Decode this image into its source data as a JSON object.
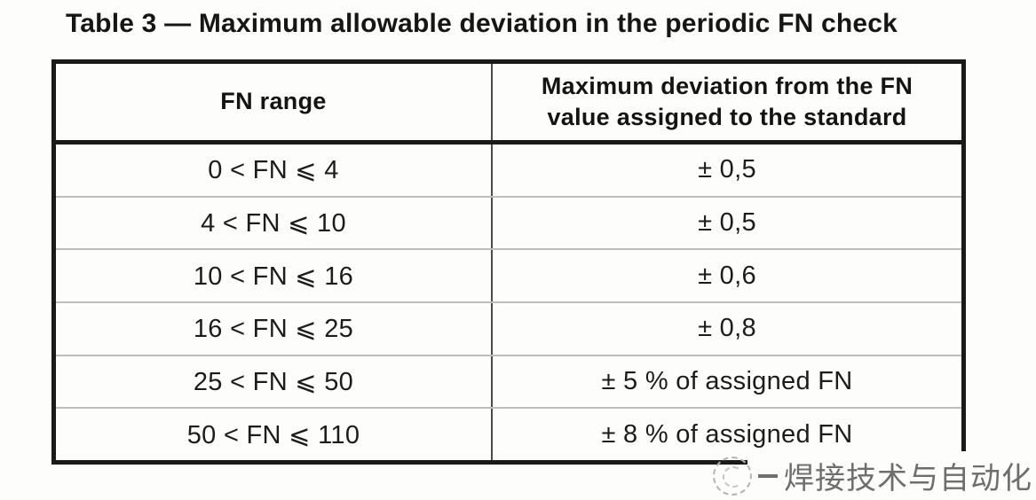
{
  "title": "Table 3 — Maximum allowable deviation in the periodic FN check",
  "table": {
    "columns": [
      "FN range",
      "Maximum deviation from the FN value assigned to the standard"
    ],
    "rows": [
      {
        "range": "0 < FN ⩽ 4",
        "deviation": "± 0,5"
      },
      {
        "range": "4 < FN ⩽ 10",
        "deviation": "± 0,5"
      },
      {
        "range": "10 < FN ⩽ 16",
        "deviation": "± 0,6"
      },
      {
        "range": "16 < FN ⩽ 25",
        "deviation": "± 0,8"
      },
      {
        "range": "25 < FN ⩽ 50",
        "deviation": "± 5 % of assigned FN"
      },
      {
        "range": "50 < FN ⩽ 110",
        "deviation": "± 8 % of assigned FN"
      }
    ]
  },
  "watermark": {
    "logo": "dashed-circle-logo",
    "text": "焊接技术与自动化"
  },
  "colors": {
    "background": "#fdfdfc",
    "outer_border": "#1a1a1a",
    "column_divider": "#4a4a4a",
    "row_divider": "#bdbdbd",
    "text": "#1c1c1c",
    "watermark_text": "#6e6e6e"
  }
}
